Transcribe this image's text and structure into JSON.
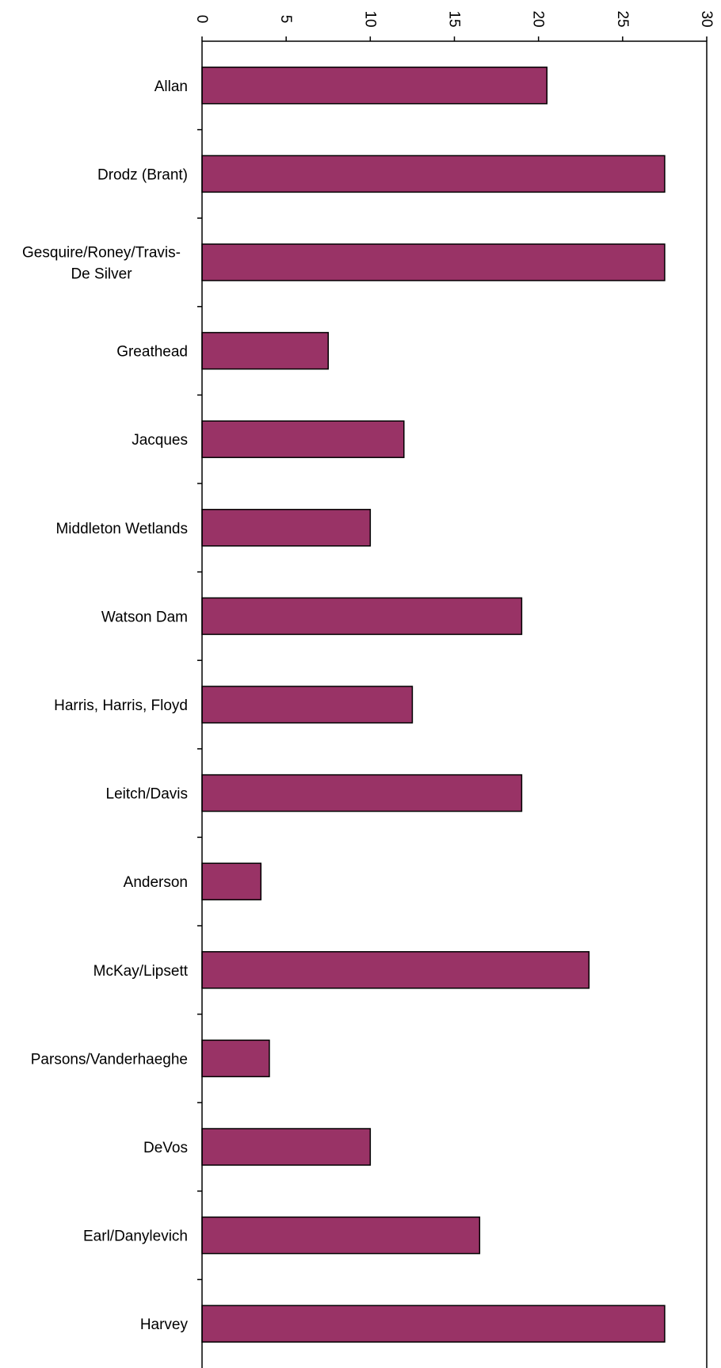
{
  "chart_data": {
    "type": "bar",
    "orientation": "horizontal",
    "title": "",
    "xlabel": "",
    "ylabel": "",
    "xlim": [
      0,
      30
    ],
    "ticks": [
      "0",
      "5",
      "10",
      "15",
      "20",
      "25",
      "30"
    ],
    "tick_values": [
      0,
      5,
      10,
      15,
      20,
      25,
      30
    ],
    "tick_label_rotation": "90deg",
    "grid": false,
    "legend": "none",
    "bar_color": "#993366",
    "bar_edge_color": "#000000",
    "categories": [
      "Allan",
      "Drodz (Brant)",
      "Gesquire/Roney/Travis-De Silver",
      "Greathead",
      "Jacques",
      "Middleton Wetlands",
      "Watson Dam",
      "Harris, Harris, Floyd",
      "Leitch/Davis",
      "Anderson",
      "McKay/Lipsett",
      "Parsons/Vanderhaeghe",
      "DeVos",
      "Earl/Danylevich",
      "Harvey"
    ],
    "category_label_lines": [
      [
        "Allan"
      ],
      [
        "Drodz (Brant)"
      ],
      [
        "Gesquire/Roney/Travis-",
        "De Silver"
      ],
      [
        "Greathead"
      ],
      [
        "Jacques"
      ],
      [
        "Middleton Wetlands"
      ],
      [
        "Watson Dam"
      ],
      [
        "Harris, Harris, Floyd"
      ],
      [
        "Leitch/Davis"
      ],
      [
        "Anderson"
      ],
      [
        "McKay/Lipsett"
      ],
      [
        "Parsons/Vanderhaeghe"
      ],
      [
        "DeVos"
      ],
      [
        "Earl/Danylevich"
      ],
      [
        "Harvey"
      ]
    ],
    "values": [
      20.5,
      27.5,
      27.5,
      7.5,
      12,
      10,
      19,
      12.5,
      19,
      3.5,
      23,
      4,
      10,
      16.5,
      27.5
    ]
  }
}
